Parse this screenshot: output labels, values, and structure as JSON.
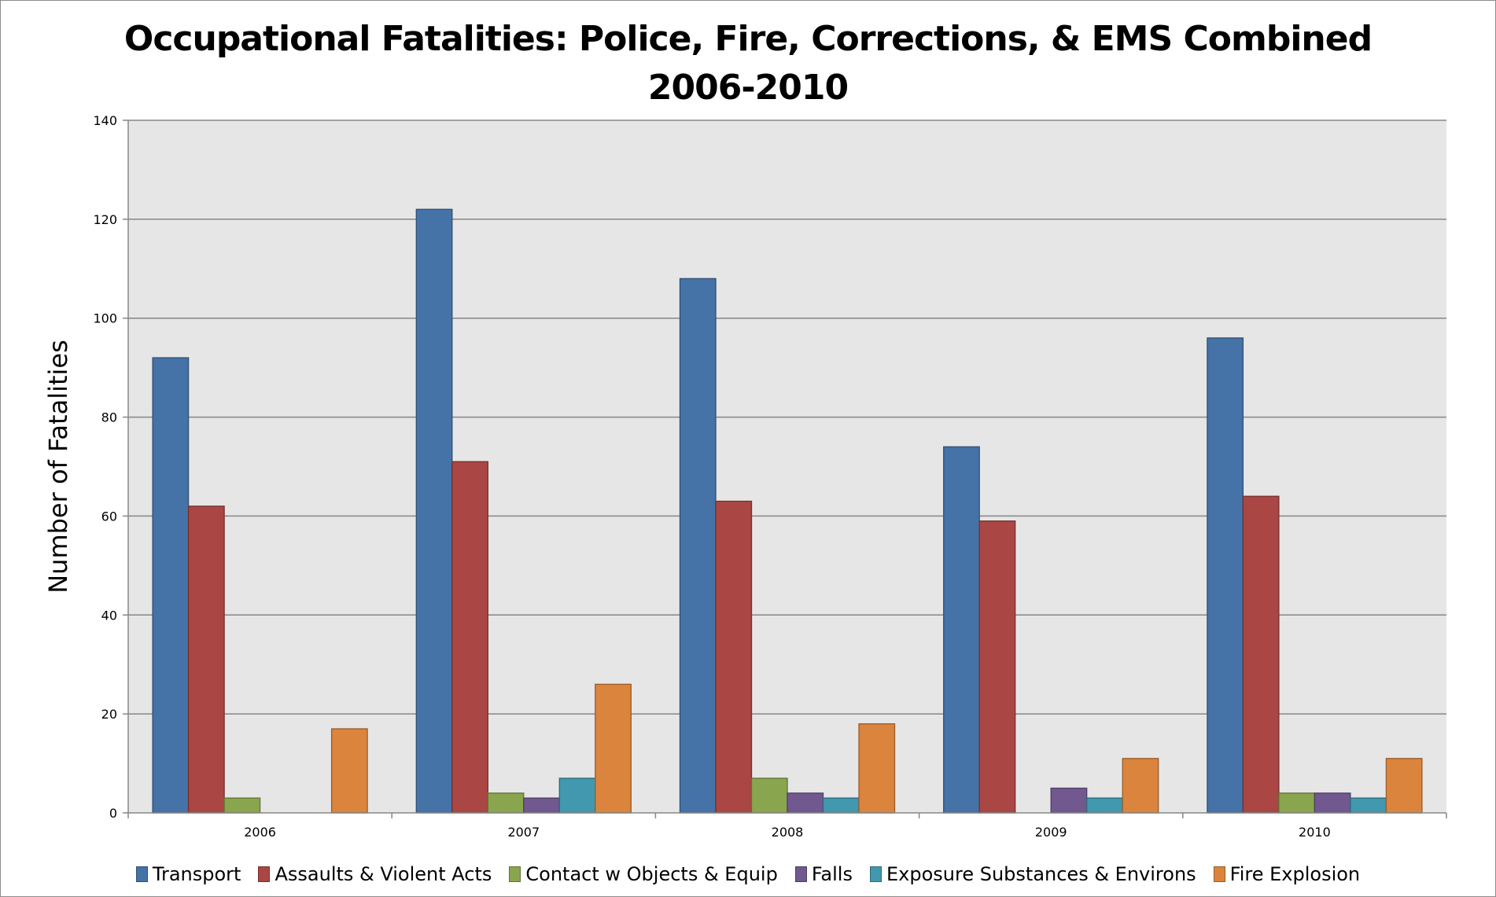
{
  "chart_data": {
    "type": "bar",
    "title": "Occupational Fatalities: Police, Fire, Corrections, & EMS Combined",
    "subtitle": "2006-2010",
    "xlabel": "",
    "ylabel": "Number of Fatalities",
    "ylim": [
      0,
      140
    ],
    "yticks": [
      0,
      20,
      40,
      60,
      80,
      100,
      120,
      140
    ],
    "grid": true,
    "legend_position": "bottom",
    "categories": [
      "2006",
      "2007",
      "2008",
      "2009",
      "2010"
    ],
    "series": [
      {
        "name": "Transport",
        "color": "#4572A7",
        "values": [
          92,
          122,
          108,
          74,
          96
        ]
      },
      {
        "name": "Assaults & Violent Acts",
        "color": "#AA4643",
        "values": [
          62,
          71,
          63,
          59,
          64
        ]
      },
      {
        "name": "Contact w Objects & Equip",
        "color": "#89A54E",
        "values": [
          3,
          4,
          7,
          0,
          4
        ]
      },
      {
        "name": "Falls",
        "color": "#71588F",
        "values": [
          0,
          3,
          4,
          5,
          4
        ]
      },
      {
        "name": "Exposure Substances & Environs",
        "color": "#4198AF",
        "values": [
          0,
          7,
          3,
          3,
          3
        ]
      },
      {
        "name": "Fire Explosion",
        "color": "#DB843D",
        "values": [
          17,
          26,
          18,
          11,
          11
        ]
      }
    ]
  },
  "colors": {
    "plot_background": "#E6E6E6",
    "gridline": "#878787"
  }
}
